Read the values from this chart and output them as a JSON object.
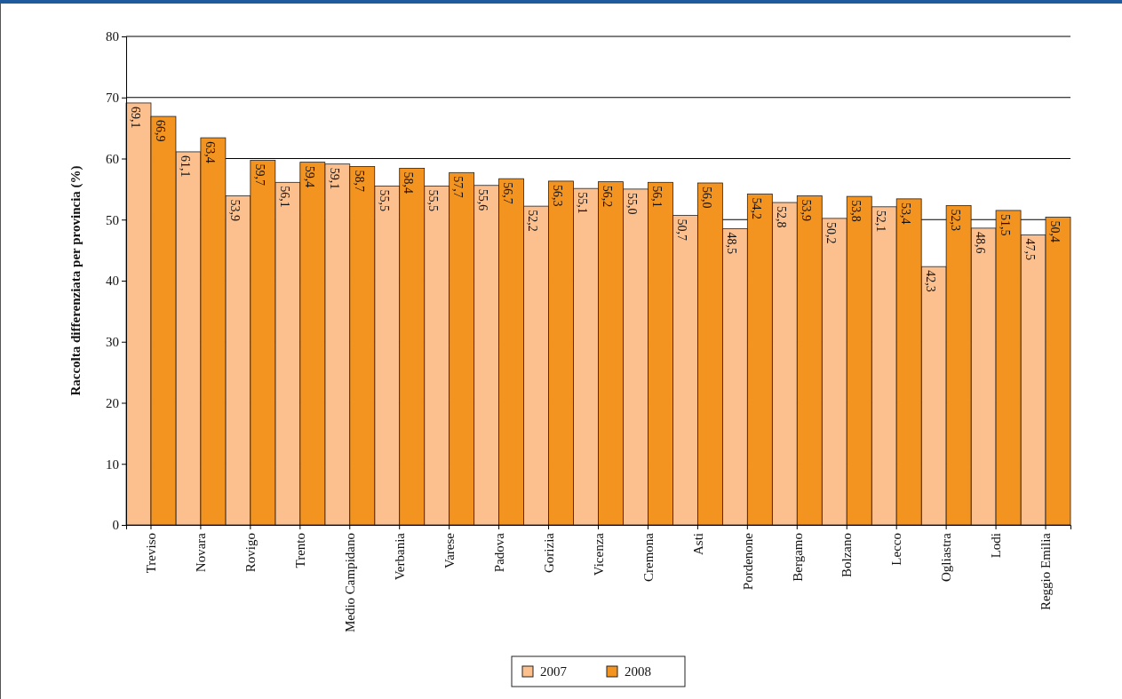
{
  "chart_data": {
    "type": "bar",
    "ylabel": "Raccolta differenziata per provincia (%)",
    "categories": [
      "Treviso",
      "Novara",
      "Rovigo",
      "Trento",
      "Medio Campidano",
      "Verbania",
      "Varese",
      "Padova",
      "Gorizia",
      "Vicenza",
      "Cremona",
      "Asti",
      "Pordenone",
      "Bergamo",
      "Bolzano",
      "Lecco",
      "Ogliastra",
      "Lodi",
      "Reggio Emilia"
    ],
    "series": [
      {
        "name": "2007",
        "color": "#fcc08f",
        "values": [
          69.1,
          61.1,
          53.9,
          56.1,
          59.1,
          55.5,
          55.5,
          55.6,
          52.2,
          55.1,
          55.0,
          50.7,
          48.5,
          52.8,
          50.2,
          52.1,
          42.3,
          48.6,
          47.5
        ],
        "value_labels": [
          "69,1",
          "61,1",
          "53,9",
          "56,1",
          "59,1",
          "55,5",
          "55,5",
          "55,6",
          "52,2",
          "55,1",
          "55,0",
          "50,7",
          "48,5",
          "52,8",
          "50,2",
          "52,1",
          "42,3",
          "48,6",
          "47,5"
        ]
      },
      {
        "name": "2008",
        "color": "#f39320",
        "values": [
          66.9,
          63.4,
          59.7,
          59.4,
          58.7,
          58.4,
          57.7,
          56.7,
          56.3,
          56.2,
          56.1,
          56.0,
          54.2,
          53.9,
          53.8,
          53.4,
          52.3,
          51.5,
          50.4
        ],
        "value_labels": [
          "66,9",
          "63,4",
          "59,7",
          "59,4",
          "58,7",
          "58,4",
          "57,7",
          "56,7",
          "56,3",
          "56,2",
          "56,1",
          "56,0",
          "54,2",
          "53,9",
          "53,8",
          "53,4",
          "52,3",
          "51,5",
          "50,4"
        ]
      }
    ],
    "ylim": [
      0,
      80
    ],
    "yticks": [
      0,
      10,
      20,
      30,
      40,
      50,
      60,
      70,
      80
    ],
    "grid": "y",
    "legend": "bottom"
  }
}
